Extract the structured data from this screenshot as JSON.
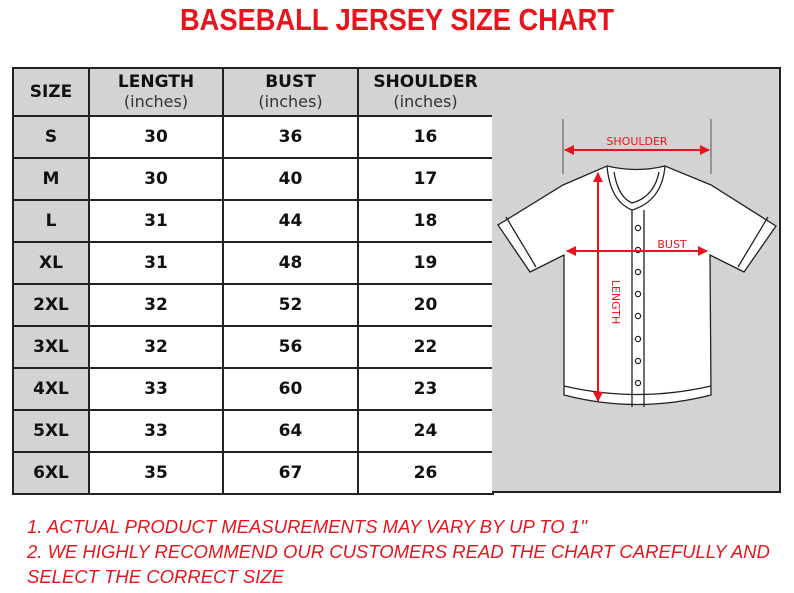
{
  "title": "BASEBALL JERSEY SIZE CHART",
  "table": {
    "headers": [
      {
        "label": "SIZE",
        "unit": ""
      },
      {
        "label": "LENGTH",
        "unit": "(inches)"
      },
      {
        "label": "BUST",
        "unit": "(inches)"
      },
      {
        "label": "SHOULDER",
        "unit": "(inches)"
      }
    ],
    "rows": [
      [
        "S",
        "30",
        "36",
        "16"
      ],
      [
        "M",
        "30",
        "40",
        "17"
      ],
      [
        "L",
        "31",
        "44",
        "18"
      ],
      [
        "XL",
        "31",
        "48",
        "19"
      ],
      [
        "2XL",
        "32",
        "52",
        "20"
      ],
      [
        "3XL",
        "32",
        "56",
        "22"
      ],
      [
        "4XL",
        "33",
        "60",
        "23"
      ],
      [
        "5XL",
        "33",
        "64",
        "24"
      ],
      [
        "6XL",
        "35",
        "67",
        "26"
      ]
    ]
  },
  "diagram": {
    "shoulder_label": "SHOULDER",
    "bust_label": "BUST",
    "length_label": "LENGTH",
    "measure_color": "#e8141c"
  },
  "notes": [
    "1. ACTUAL PRODUCT MEASUREMENTS MAY VARY BY UP TO 1''",
    "2. WE HIGHLY RECOMMEND OUR CUSTOMERS READ THE CHART CAREFULLY AND",
    "SELECT THE CORRECT SIZE"
  ],
  "colors": {
    "accent": "#e8141c",
    "header_bg": "#d3d3d3"
  }
}
